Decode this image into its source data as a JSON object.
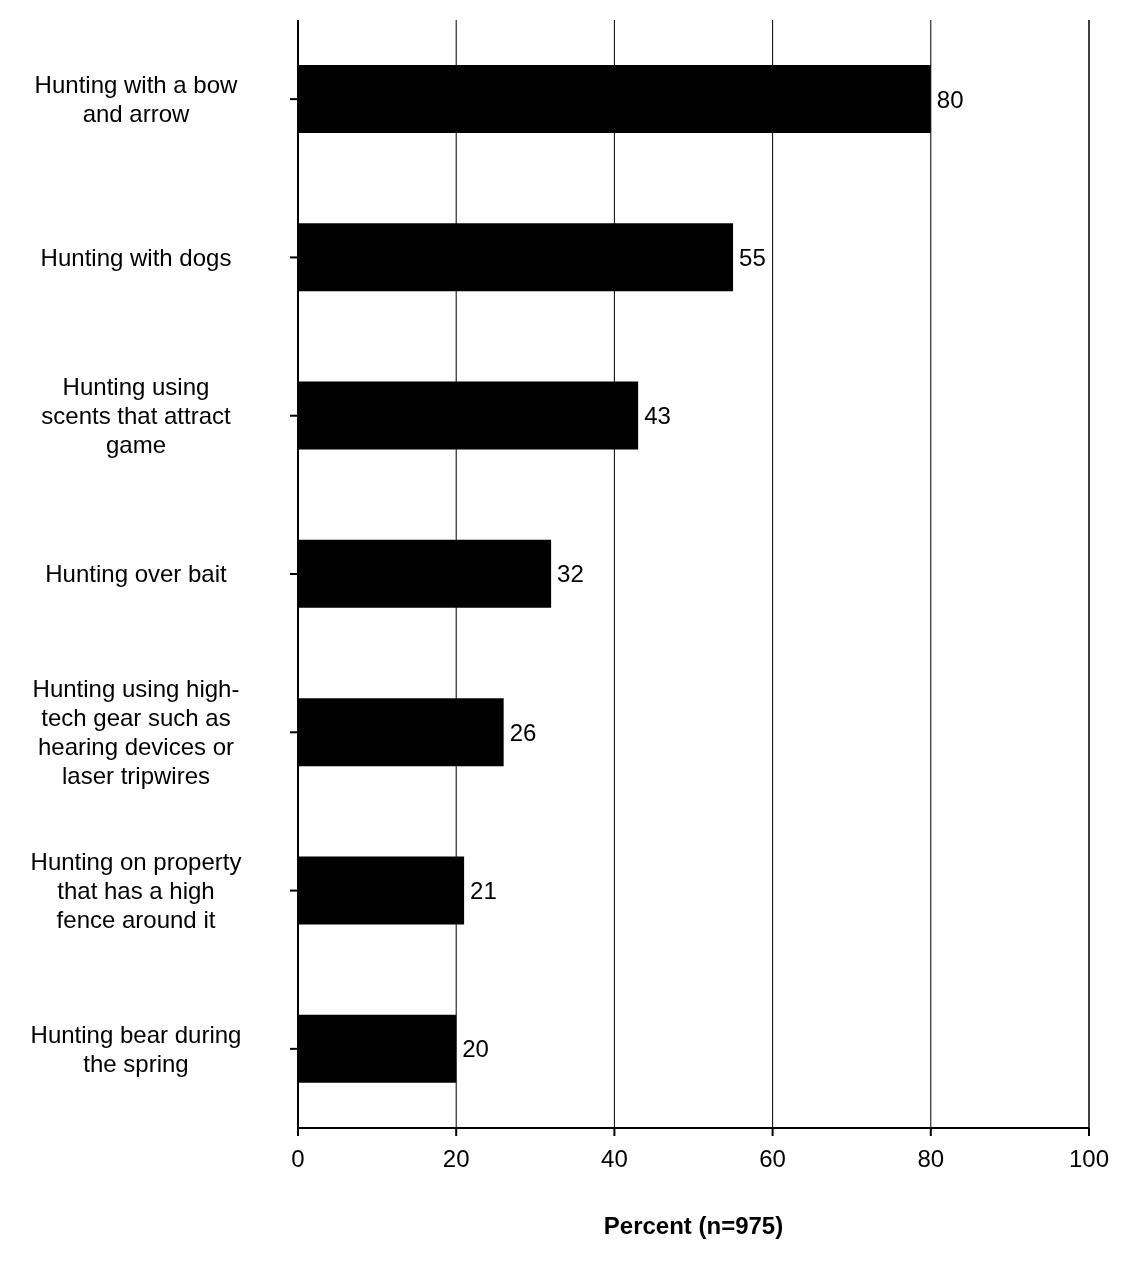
{
  "chart_data": {
    "type": "bar",
    "orientation": "horizontal",
    "xlabel": "Percent (n=975)",
    "categories": [
      "Hunting with a bow and arrow",
      "Hunting with dogs",
      "Hunting using scents that attract game",
      "Hunting over bait",
      "Hunting using high-tech gear such as hearing devices or laser tripwires",
      "Hunting on property that has a high fence around it",
      "Hunting bear during the spring"
    ],
    "values": [
      80,
      55,
      43,
      32,
      26,
      21,
      20
    ],
    "color": "#000000",
    "xlim": [
      0,
      100
    ],
    "xticks": [
      0,
      20,
      40,
      60,
      80,
      100
    ],
    "grid": "x",
    "data_labels": true,
    "legend": false
  }
}
